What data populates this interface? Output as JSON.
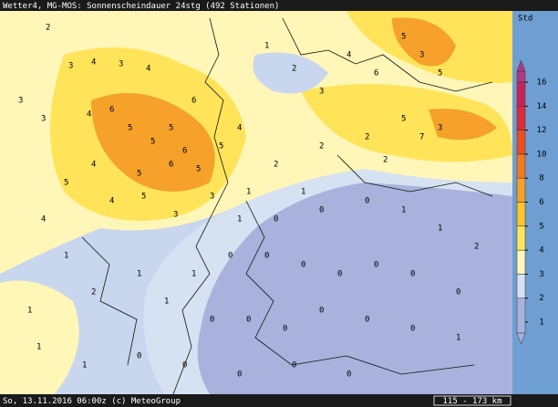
{
  "header": {
    "title": "Wetter4, MG-MOS: Sonnenscheindauer 24stg (492 Stationen)"
  },
  "legend": {
    "unit": "Std",
    "ticks": [
      1,
      2,
      3,
      4,
      5,
      6,
      8,
      10,
      12,
      14,
      16
    ],
    "colors": [
      "#a8b2dc",
      "#d6e2f2",
      "#fff6b8",
      "#ffe45a",
      "#fbc72a",
      "#f5a12a",
      "#f27a22",
      "#ec4e22",
      "#de2a3a",
      "#c8245a",
      "#b03a82"
    ]
  },
  "stations": {
    "values": [
      2,
      3,
      4,
      3,
      4,
      3,
      3,
      4,
      6,
      5,
      5,
      5,
      6,
      6,
      6,
      5,
      5,
      4,
      5,
      4,
      5,
      4,
      4,
      5,
      3,
      3,
      1,
      2,
      3,
      4,
      6,
      5,
      3,
      5,
      5,
      7,
      3,
      2,
      2,
      2,
      2,
      1,
      1,
      1,
      0,
      0,
      0,
      1,
      1,
      2,
      1,
      2,
      1,
      1,
      1,
      0,
      0,
      0,
      0,
      0,
      0,
      0,
      0,
      0,
      0,
      0,
      0,
      0,
      1,
      1,
      1,
      1,
      0,
      0,
      0,
      0,
      0
    ]
  },
  "footer": {
    "text": "So, 13.11.2016 06:00z (c) MeteoGroup",
    "scale": "115 - 173 km"
  }
}
